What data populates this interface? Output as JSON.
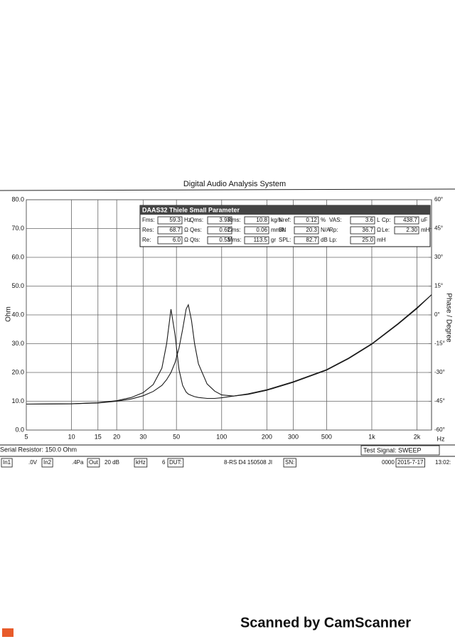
{
  "chart_data": {
    "type": "line",
    "title": "Digital Audio Analysis System",
    "y_label": "Ohm",
    "y2_label": "Phase / Degree",
    "x_unit": "Hz",
    "log_x": true,
    "grid": true,
    "xlim": [
      5,
      2500
    ],
    "ylim": [
      0,
      80
    ],
    "y2lim": [
      -60,
      60
    ],
    "xticks": [
      5,
      10,
      15,
      20,
      30,
      50,
      100,
      200,
      300,
      500,
      {
        "value": 1000,
        "label": "1k"
      },
      {
        "value": 2000,
        "label": "2k"
      }
    ],
    "yticks": [
      {
        "value": 0,
        "label": "0.0"
      },
      {
        "value": 10,
        "label": "10.0"
      },
      {
        "value": 20,
        "label": "20.0"
      },
      {
        "value": 30,
        "label": "30.0"
      },
      {
        "value": 40,
        "label": "40.0"
      },
      {
        "value": 50,
        "label": "50.0"
      },
      {
        "value": 60,
        "label": "60.0"
      },
      {
        "value": 70,
        "label": "70.0"
      },
      {
        "value": 80,
        "label": "80.0"
      }
    ],
    "y2ticks": [
      {
        "value": -60,
        "label": "-60°"
      },
      {
        "value": -45,
        "label": "-45°"
      },
      {
        "value": -30,
        "label": "-30°"
      },
      {
        "value": -15,
        "label": "-15°"
      },
      {
        "value": 0,
        "label": "0°"
      },
      {
        "value": 15,
        "label": "15°"
      },
      {
        "value": 30,
        "label": "30°"
      },
      {
        "value": 45,
        "label": "45°"
      },
      {
        "value": 60,
        "label": "60°"
      }
    ],
    "x": [
      5,
      10,
      15,
      20,
      25,
      30,
      35,
      40,
      43,
      46,
      49,
      52,
      55,
      58,
      60,
      63,
      66,
      70,
      80,
      90,
      100,
      120,
      150,
      200,
      300,
      500,
      700,
      1000,
      1500,
      2000,
      2500
    ],
    "series": [
      {
        "color": "#1a1a1a",
        "values": [
          9.0,
          9.1,
          9.5,
          10.2,
          11.3,
          13.0,
          15.8,
          21.5,
          30,
          42,
          33,
          21,
          15.5,
          13.2,
          12.5,
          12,
          11.6,
          11.3,
          11.0,
          11.0,
          11.2,
          11.8,
          12.6,
          14.0,
          16.8,
          21.0,
          25,
          30,
          37,
          42.5,
          47
        ]
      },
      {
        "color": "#1a1a1a",
        "values": [
          9.0,
          9.1,
          9.4,
          10.0,
          10.8,
          11.9,
          13.4,
          15.5,
          17.5,
          20,
          23.5,
          28.5,
          35,
          42,
          43.5,
          38,
          30,
          23,
          16,
          13.5,
          12.2,
          11.8,
          12.4,
          13.8,
          16.6,
          20.8,
          24.8,
          29.8,
          36.8,
          42.2,
          47
        ]
      }
    ]
  },
  "parameters": {
    "title": "DAAS32 Thiele Small Parameter",
    "rows": [
      [
        [
          "Fms:",
          "59.3",
          "Hz"
        ],
        [
          "Qms:",
          "3.93",
          ""
        ],
        [
          "Rms:",
          "10.8",
          "kg/s"
        ],
        [
          "Nref:",
          "0.12",
          "%"
        ],
        [
          "VAS:",
          "3.6",
          "L"
        ],
        [
          "Cp:",
          "438.7",
          "uF"
        ]
      ],
      [
        [
          "Res:",
          "68.7",
          "Ω"
        ],
        [
          "Qes:",
          "0.62",
          ""
        ],
        [
          "Cms:",
          "0.06",
          "mm/N"
        ],
        [
          "Bl:",
          "20.3",
          "N/A"
        ],
        [
          "Rp:",
          "36.7",
          "Ω"
        ],
        [
          "Le:",
          "2.30",
          "mH"
        ]
      ],
      [
        [
          "Re:",
          "6.0",
          "Ω"
        ],
        [
          "Qts:",
          "0.53",
          ""
        ],
        [
          "Mms:",
          "113.5",
          "gr"
        ],
        [
          "SPL:",
          "82.7",
          "dB"
        ],
        [
          "Lp:",
          "25.0",
          "mH"
        ]
      ]
    ]
  },
  "footer": {
    "serial_resistor": "Serial Resistor: 150.0 Ohm",
    "test_signal": "Test Signal: SWEEP",
    "status": [
      "In1",
      ".0V",
      "In2",
      ".4Pa",
      "Out",
      "20 dB",
      "kHz",
      "6",
      "DUT:",
      "8-RS D4 150508 JI",
      "SN:",
      "0000",
      "2015-7-17",
      "13:02:"
    ]
  },
  "watermark": "Scanned by CamScanner"
}
